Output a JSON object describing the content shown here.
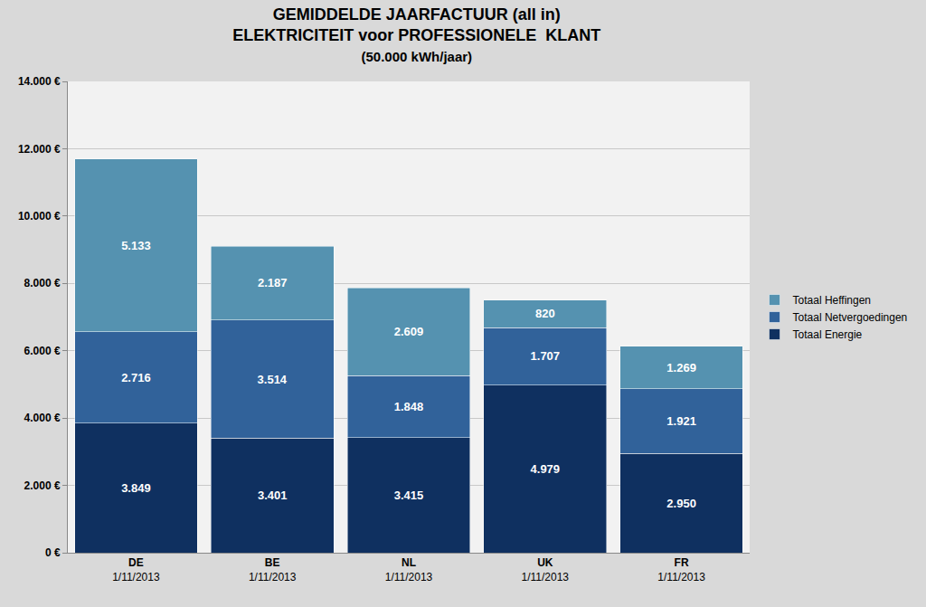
{
  "chart_data": {
    "type": "bar",
    "title": "GEMIDDELDE JAARFACTUUR (all in)\nELEKTRICITEIT voor PROFESSIONELE  KLANT",
    "subtitle": "(50.000 kWh/jaar)",
    "categories": [
      "DE",
      "BE",
      "NL",
      "UK",
      "FR"
    ],
    "dates": [
      "1/11/2013",
      "1/11/2013",
      "1/11/2013",
      "1/11/2013",
      "1/11/2013"
    ],
    "stacked": true,
    "data_labels": true,
    "grid": true,
    "legend": "right",
    "ylim": [
      0,
      14000
    ],
    "yticks": [
      {
        "value": 0,
        "label": "0 €"
      },
      {
        "value": 2000,
        "label": "2.000 €"
      },
      {
        "value": 4000,
        "label": "4.000 €"
      },
      {
        "value": 6000,
        "label": "6.000 €"
      },
      {
        "value": 8000,
        "label": "8.000 €"
      },
      {
        "value": 10000,
        "label": "10.000 €"
      },
      {
        "value": 12000,
        "label": "12.000 €"
      },
      {
        "value": 14000,
        "label": "14.000 €"
      }
    ],
    "series": [
      {
        "name": "Totaal Energie",
        "color": "#0f3060",
        "values": [
          3849,
          3401,
          3415,
          4979,
          2950
        ],
        "value_labels": [
          "3.849",
          "3.401",
          "3.415",
          "4.979",
          "2.950"
        ]
      },
      {
        "name": "Totaal Netvergoedingen",
        "color": "#31629a",
        "values": [
          2716,
          3514,
          1848,
          1707,
          1921
        ],
        "value_labels": [
          "2.716",
          "3.514",
          "1.848",
          "1.707",
          "1.921"
        ]
      },
      {
        "name": "Totaal Heffingen",
        "color": "#5592b0",
        "values": [
          5133,
          2187,
          2609,
          820,
          1269
        ],
        "value_labels": [
          "5.133",
          "2.187",
          "2.609",
          "820",
          "1.269"
        ]
      }
    ]
  }
}
